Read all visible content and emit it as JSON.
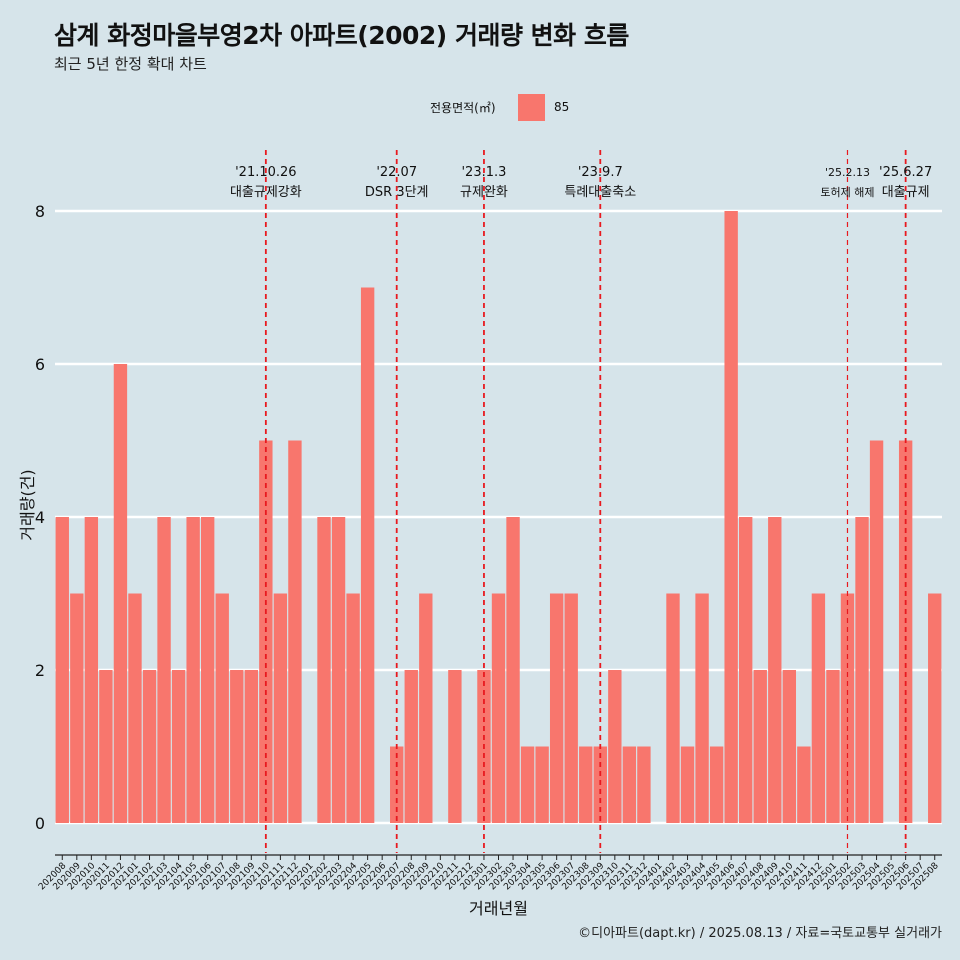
{
  "title": "삼계 화정마을부영2차 아파트(2002) 거래량 변화 흐름",
  "subtitle": "최근 5년 한정 확대 차트",
  "legend": {
    "title": "전용면적(㎡)",
    "items": [
      {
        "label": "85",
        "color": "#f8766d"
      }
    ]
  },
  "caption": "©디아파트(dapt.kr) / 2025.08.13 / 자료=국토교통부 실거래가",
  "colors": {
    "background": "#d6e4ea",
    "bar": "#f8766d",
    "gridline": "#ffffff",
    "event_line": "#e8191f"
  },
  "chart_data": {
    "type": "bar",
    "xlabel": "거래년월",
    "ylabel": "거래량(건)",
    "ylim": [
      0,
      8
    ],
    "yticks": [
      0,
      2,
      4,
      6,
      8
    ],
    "grid": true,
    "legend_position": "top",
    "categories": [
      "202008",
      "202009",
      "202010",
      "202011",
      "202012",
      "202101",
      "202102",
      "202103",
      "202104",
      "202105",
      "202106",
      "202107",
      "202108",
      "202109",
      "202110",
      "202111",
      "202112",
      "202201",
      "202202",
      "202203",
      "202204",
      "202205",
      "202206",
      "202207",
      "202208",
      "202209",
      "202210",
      "202211",
      "202212",
      "202301",
      "202302",
      "202303",
      "202304",
      "202305",
      "202306",
      "202307",
      "202308",
      "202309",
      "202310",
      "202311",
      "202312",
      "202401",
      "202402",
      "202403",
      "202404",
      "202405",
      "202406",
      "202407",
      "202408",
      "202409",
      "202410",
      "202411",
      "202412",
      "202501",
      "202502",
      "202503",
      "202504",
      "202505",
      "202506",
      "202507",
      "202508"
    ],
    "series": [
      {
        "name": "85",
        "values": [
          4,
          3,
          4,
          2,
          6,
          3,
          2,
          4,
          2,
          4,
          4,
          3,
          2,
          2,
          5,
          3,
          5,
          0,
          4,
          4,
          3,
          7,
          0,
          1,
          2,
          3,
          0,
          2,
          0,
          2,
          3,
          4,
          1,
          1,
          3,
          3,
          1,
          1,
          2,
          1,
          1,
          0,
          3,
          1,
          3,
          1,
          8,
          4,
          2,
          4,
          2,
          1,
          3,
          2,
          3,
          4,
          5,
          0,
          5,
          0,
          3
        ]
      }
    ],
    "annotations": [
      {
        "x": "202110",
        "date": "'21.10.26",
        "label": "대출규제강화"
      },
      {
        "x": "202207",
        "date": "'22.07",
        "label": "DSR 3단계"
      },
      {
        "x": "202301",
        "date": "'23.1.3",
        "label": "규제완화"
      },
      {
        "x": "202309",
        "date": "'23.9.7",
        "label": "특례대출축소"
      },
      {
        "x": "202502",
        "date": "'25.2.13",
        "label": "토허제 해제"
      },
      {
        "x": "202506",
        "date": "'25.6.27",
        "label": "대출규제"
      }
    ]
  }
}
